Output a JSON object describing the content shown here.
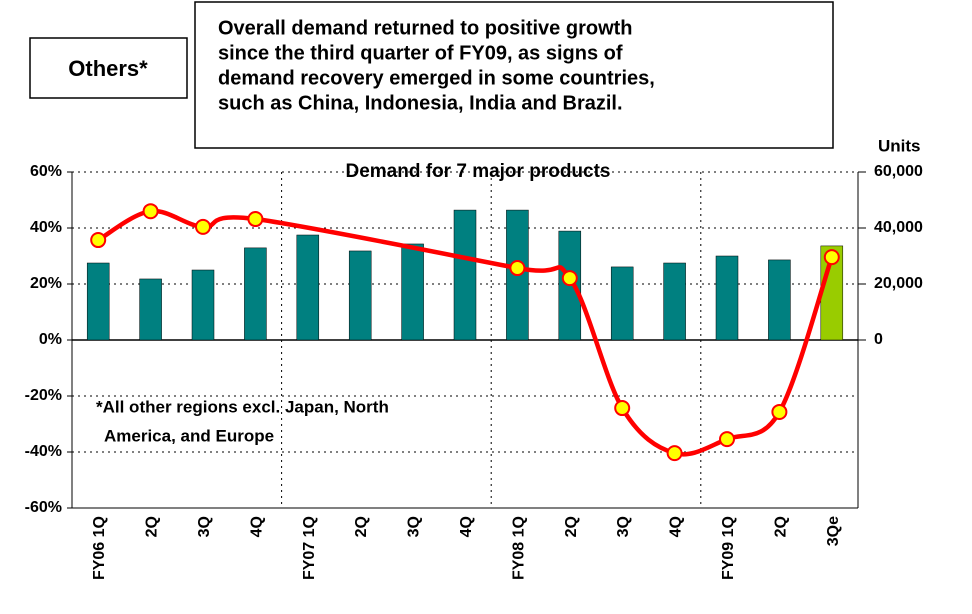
{
  "chart_data": {
    "type": "bar-line",
    "title": "Demand for 7 major products",
    "label_box": "Others*",
    "comment_lines": [
      "Overall demand returned to positive growth",
      "since the third quarter of FY09, as signs of",
      "demand recovery emerged in some countries,",
      "such as China, Indonesia, India and Brazil."
    ],
    "annotation_lines": [
      "*All other regions excl. Japan, North",
      "America, and Europe"
    ],
    "y2_label": "Units",
    "categories": [
      "FY06 1Q",
      "2Q",
      "3Q",
      "4Q",
      "FY07 1Q",
      "2Q",
      "3Q",
      "4Q",
      "FY08 1Q",
      "2Q",
      "3Q",
      "4Q",
      "FY09 1Q",
      "2Q",
      "3Qe"
    ],
    "series": [
      {
        "type": "bar",
        "axis": "y2",
        "color": "#008080",
        "colors": [
          "#008080",
          "#008080",
          "#008080",
          "#008080",
          "#008080",
          "#008080",
          "#008080",
          "#008080",
          "#008080",
          "#008080",
          "#008080",
          "#008080",
          "#008080",
          "#008080",
          "#99cc00"
        ],
        "values": [
          27500,
          21800,
          25000,
          32900,
          37500,
          31800,
          34300,
          46400,
          46400,
          38900,
          26100,
          27500,
          30000,
          28600,
          33600
        ]
      },
      {
        "type": "line",
        "color": "#ff0000",
        "marker_color": "#ffff00",
        "values": [
          35.7,
          46,
          40.4,
          43.2,
          null,
          null,
          null,
          null,
          25.7,
          22.1,
          -24.3,
          -40.4,
          -35.4,
          -25.7,
          29.6
        ]
      }
    ],
    "ylim": [
      -60,
      60
    ],
    "yticks": [
      {
        "value": -60,
        "label": "-60%"
      },
      {
        "value": -40,
        "label": "-40%"
      },
      {
        "value": -20,
        "label": "-20%"
      },
      {
        "value": 0,
        "label": "0%"
      },
      {
        "value": 20,
        "label": "20%"
      },
      {
        "value": 40,
        "label": "40%"
      },
      {
        "value": 60,
        "label": "60%"
      }
    ],
    "y2lim": [
      -60000,
      60000
    ],
    "y2ticks": [
      0,
      {
        "value": 20000,
        "label": "20,000"
      },
      {
        "value": 40000,
        "label": "40,000"
      },
      {
        "value": 60000,
        "label": "60,000"
      }
    ],
    "grid": true
  }
}
